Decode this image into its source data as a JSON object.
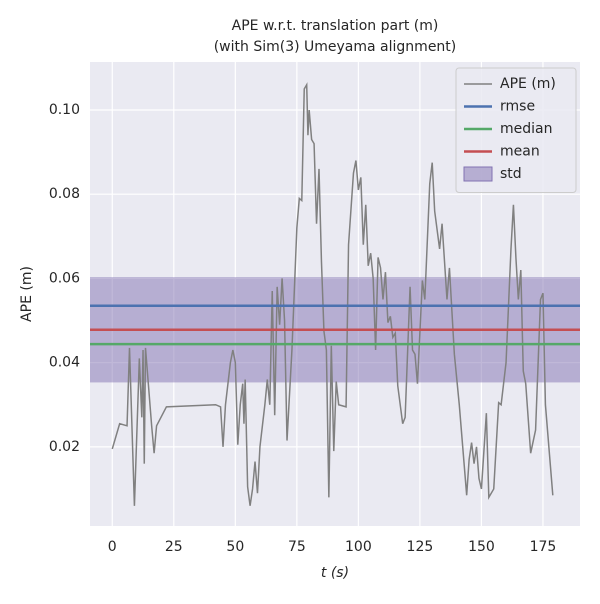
{
  "chart_data": {
    "type": "line",
    "title": "APE w.r.t. translation part (m)",
    "subtitle": "(with Sim(3) Umeyama alignment)",
    "x_label": "t (s)",
    "y_label": "APE (m)",
    "xlim": [
      -9.05,
      190.05
    ],
    "ylim": [
      0.0012,
      0.1114
    ],
    "xticks": [
      0,
      25,
      50,
      75,
      100,
      125,
      150,
      175
    ],
    "yticks": [
      0.02,
      0.04,
      0.06,
      0.08,
      {
        "value": 0.1,
        "label": "0.10"
      }
    ],
    "grid": true,
    "legend": "upper right",
    "x": [
      0,
      3,
      6,
      7,
      9,
      11,
      12,
      12.5,
      13,
      13.5,
      16,
      17,
      18,
      22,
      42,
      44,
      45,
      46,
      48,
      49,
      50,
      51,
      52,
      53,
      53.5,
      54,
      55,
      56,
      57,
      58,
      59,
      60,
      62,
      63,
      64,
      65,
      66,
      67,
      68,
      69,
      70,
      71,
      73,
      75,
      76,
      77,
      78,
      79,
      79.5,
      80,
      81,
      82,
      83,
      84,
      85,
      86,
      87,
      88,
      89,
      90,
      91,
      92,
      95,
      96,
      98,
      99,
      100,
      101,
      102,
      103,
      104,
      105,
      106,
      107,
      108,
      109,
      110,
      111,
      112,
      113,
      114,
      115,
      116,
      118,
      119,
      121,
      122,
      123,
      124,
      126,
      127,
      129,
      130,
      131,
      133,
      134,
      136,
      137,
      139,
      141,
      144,
      145,
      146,
      147,
      148,
      149,
      150,
      152,
      153,
      155,
      157,
      158,
      160,
      162,
      163,
      164,
      165,
      166,
      167,
      168,
      170,
      172,
      174,
      175,
      176,
      179
    ],
    "series": [
      {
        "name": "APE (m)",
        "color": "#808080",
        "values": [
          0.0195,
          0.0255,
          0.025,
          0.0435,
          0.006,
          0.041,
          0.027,
          0.043,
          0.016,
          0.0435,
          0.025,
          0.0185,
          0.025,
          0.0295,
          0.03,
          0.0295,
          0.02,
          0.03,
          0.04,
          0.043,
          0.04,
          0.0205,
          0.03,
          0.035,
          0.0255,
          0.036,
          0.0105,
          0.006,
          0.01,
          0.0165,
          0.009,
          0.02,
          0.03,
          0.036,
          0.03,
          0.057,
          0.0275,
          0.058,
          0.049,
          0.06,
          0.05,
          0.0215,
          0.043,
          0.072,
          0.079,
          0.0785,
          0.105,
          0.106,
          0.094,
          0.1,
          0.093,
          0.092,
          0.073,
          0.086,
          0.064,
          0.0475,
          0.043,
          0.008,
          0.044,
          0.019,
          0.0355,
          0.03,
          0.0295,
          0.068,
          0.085,
          0.088,
          0.081,
          0.084,
          0.068,
          0.0775,
          0.063,
          0.066,
          0.06,
          0.043,
          0.065,
          0.0625,
          0.055,
          0.0615,
          0.0495,
          0.051,
          0.046,
          0.047,
          0.0345,
          0.0255,
          0.027,
          0.058,
          0.043,
          0.042,
          0.035,
          0.0595,
          0.055,
          0.0825,
          0.0875,
          0.076,
          0.067,
          0.073,
          0.055,
          0.0625,
          0.042,
          0.03,
          0.0085,
          0.017,
          0.021,
          0.016,
          0.02,
          0.0125,
          0.01,
          0.028,
          0.008,
          0.01,
          0.0305,
          0.03,
          0.04,
          0.067,
          0.0775,
          0.065,
          0.055,
          0.062,
          0.038,
          0.035,
          0.0185,
          0.024,
          0.055,
          0.0565,
          0.03,
          0.0085
        ]
      }
    ],
    "stats": [
      {
        "name": "rmse",
        "color": "#4c72b0",
        "value": 0.0535
      },
      {
        "name": "median",
        "color": "#55a868",
        "value": 0.0444
      },
      {
        "name": "mean",
        "color": "#c44e52",
        "value": 0.0478
      },
      {
        "name": "std",
        "color": "#8172b2",
        "value": 0.0125
      }
    ]
  }
}
